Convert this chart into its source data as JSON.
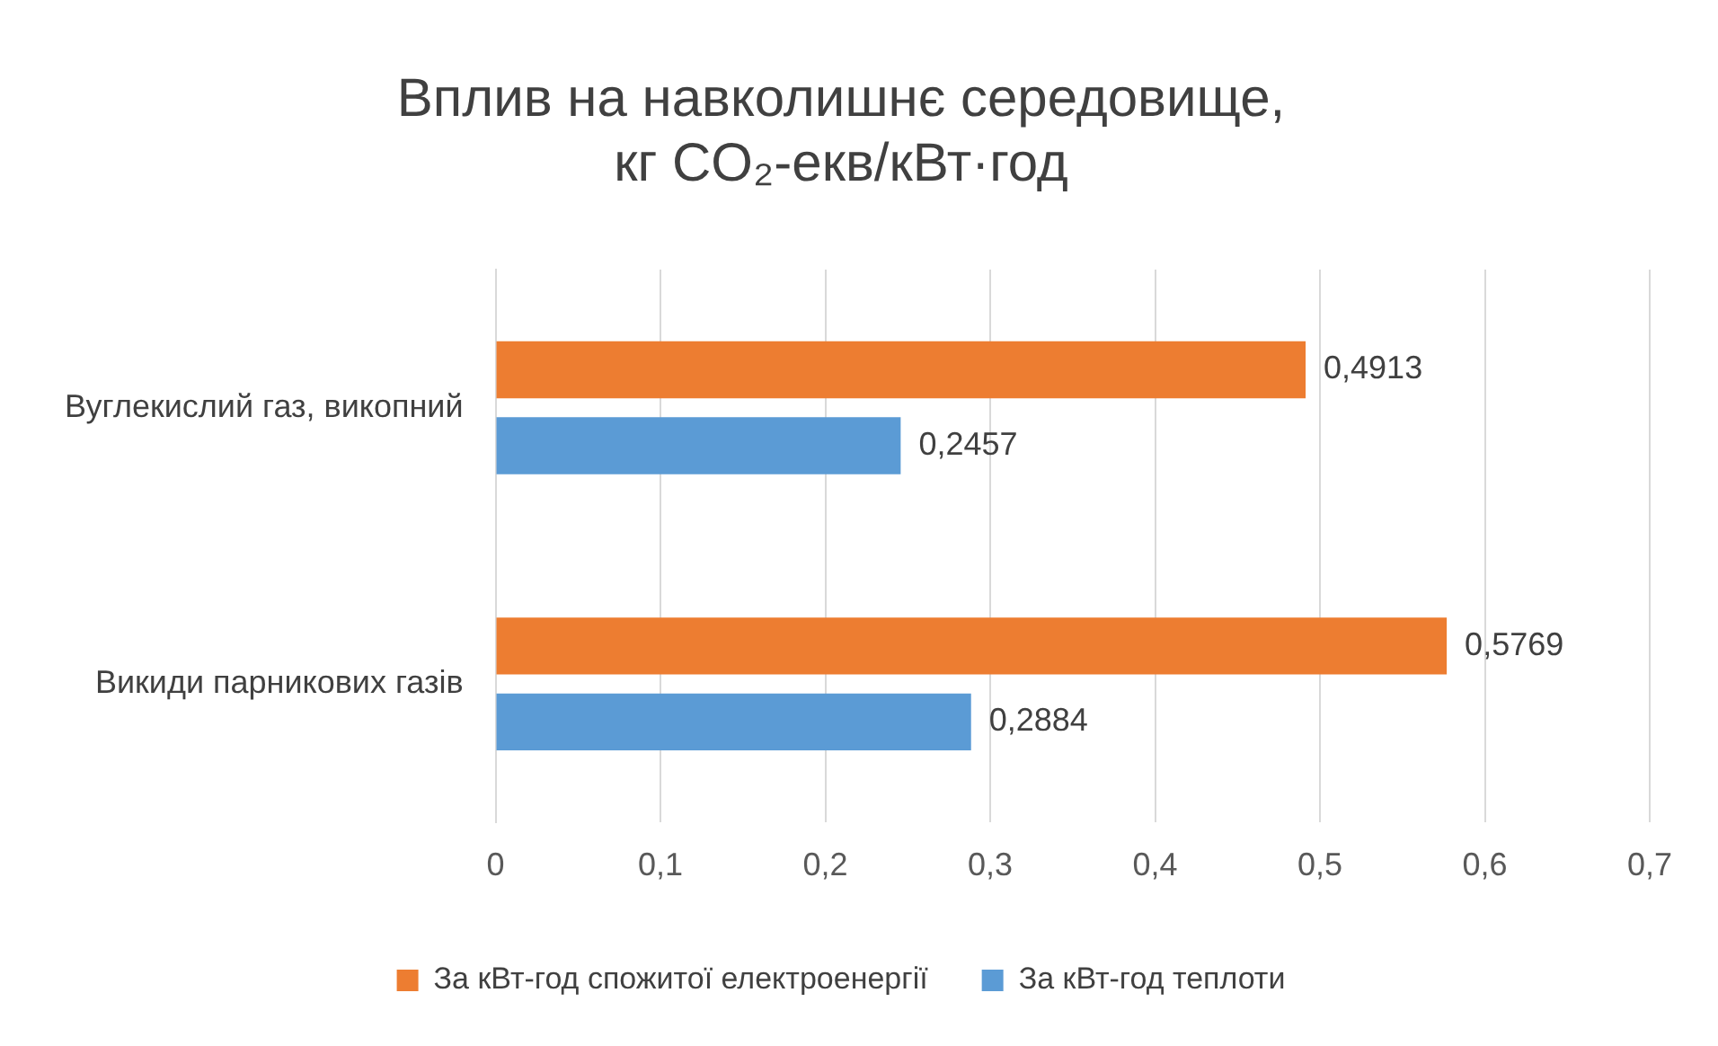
{
  "chart_data": {
    "type": "bar",
    "orientation": "horizontal",
    "title": "Вплив на навколишнє середовище,\nкг CO₂-екв/кВт·год",
    "categories": [
      "Вуглекислий газ, викопний",
      "Викиди парникових газів"
    ],
    "series": [
      {
        "name": "За кВт-год спожитої електроенергії",
        "color": "#ed7d31",
        "values": [
          0.4913,
          0.5769
        ],
        "value_labels": [
          "0,4913",
          "0,5769"
        ]
      },
      {
        "name": "За кВт-год теплоти",
        "color": "#5b9bd5",
        "values": [
          0.2457,
          0.2884
        ],
        "value_labels": [
          "0,2457",
          "0,2884"
        ]
      }
    ],
    "xlim": [
      0,
      0.7
    ],
    "xticks": [
      0,
      {
        "value": 0.1,
        "label": "0,1"
      },
      {
        "value": 0.2,
        "label": "0,2"
      },
      {
        "value": 0.3,
        "label": "0,3"
      },
      {
        "value": 0.4,
        "label": "0,4"
      },
      {
        "value": 0.5,
        "label": "0,5"
      },
      {
        "value": 0.6,
        "label": "0,6"
      },
      {
        "value": 0.7,
        "label": "0,7"
      }
    ],
    "grid": "x",
    "legend": "bottom"
  }
}
